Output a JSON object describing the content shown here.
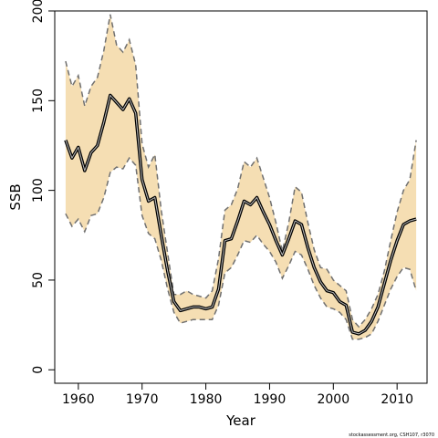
{
  "chart_data": {
    "type": "line",
    "xlabel": "Year",
    "ylabel": "SSB",
    "xlim": [
      1956.3,
      2014.7
    ],
    "ylim": [
      -7.5,
      200
    ],
    "xticks": [
      1960,
      1970,
      1980,
      1990,
      2000,
      2010
    ],
    "yticks": [
      0,
      50,
      100,
      150,
      200
    ],
    "grid": false,
    "legend": "none",
    "colors": {
      "band": "#f5deb3",
      "ci_line": "#707070",
      "estimate": "#000000",
      "estimate_inner": "#bbbbbb"
    },
    "x": [
      1958,
      1959,
      1960,
      1961,
      1962,
      1963,
      1964,
      1965,
      1966,
      1967,
      1968,
      1969,
      1970,
      1971,
      1972,
      1973,
      1974,
      1975,
      1976,
      1977,
      1978,
      1979,
      1980,
      1981,
      1982,
      1983,
      1984,
      1985,
      1986,
      1987,
      1988,
      1989,
      1990,
      1991,
      1992,
      1993,
      1994,
      1995,
      1996,
      1997,
      1998,
      1999,
      2000,
      2001,
      2002,
      2003,
      2004,
      2005,
      2006,
      2007,
      2008,
      2009,
      2010,
      2011,
      2012,
      2013
    ],
    "series": [
      {
        "role": "upper",
        "values": [
          172,
          158,
          164,
          147,
          158,
          163,
          178,
          198,
          181,
          177,
          184,
          170,
          126,
          113,
          120,
          89,
          65,
          42,
          42,
          44,
          42,
          41,
          40,
          44,
          62,
          89,
          92,
          101,
          116,
          113,
          118,
          107,
          96,
          82,
          66,
          82,
          102,
          99,
          82,
          67,
          57,
          56,
          50,
          47,
          44,
          28,
          24,
          28,
          34,
          42,
          55,
          72,
          88,
          100,
          106,
          128
        ]
      },
      {
        "role": "estimate",
        "values": [
          128,
          118,
          124,
          111,
          121,
          125,
          138,
          153,
          149,
          145,
          151,
          143,
          106,
          94,
          96,
          75,
          55,
          38,
          33,
          34,
          35,
          35,
          34,
          35,
          45,
          72,
          73,
          83,
          94,
          92,
          96,
          88,
          81,
          72,
          64,
          73,
          83,
          81,
          68,
          57,
          49,
          44,
          43,
          38,
          36,
          21,
          20,
          22,
          27,
          35,
          48,
          61,
          72,
          81,
          83,
          84
        ]
      },
      {
        "role": "lower",
        "values": [
          87,
          80,
          84,
          77,
          86,
          87,
          96,
          110,
          113,
          112,
          118,
          114,
          86,
          76,
          73,
          61,
          45,
          32,
          26,
          27,
          28,
          28,
          28,
          28,
          36,
          54,
          57,
          64,
          72,
          71,
          75,
          70,
          66,
          60,
          51,
          58,
          66,
          64,
          56,
          47,
          40,
          35,
          34,
          32,
          28,
          17,
          17,
          18,
          20,
          27,
          36,
          45,
          52,
          57,
          56,
          44
        ]
      }
    ],
    "credit": "stockassessment.org, CSH107, r3070"
  }
}
